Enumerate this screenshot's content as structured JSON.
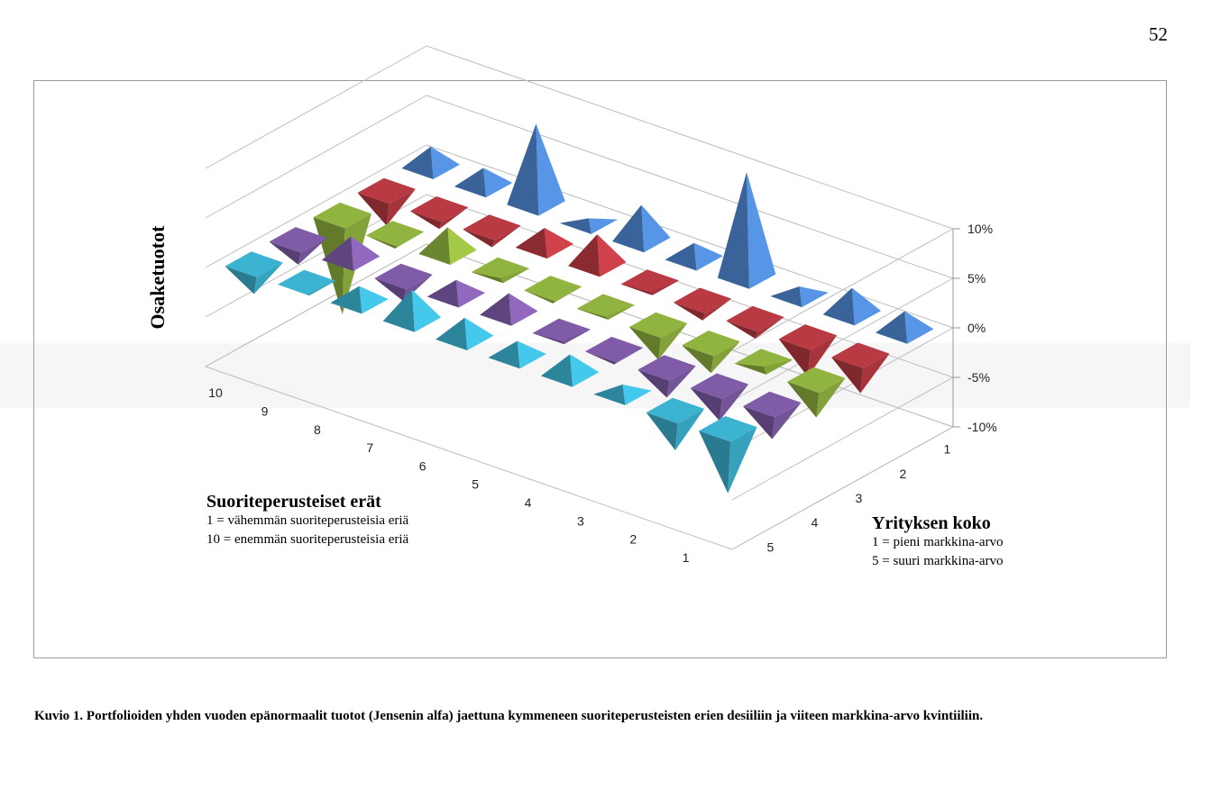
{
  "page_number": "52",
  "figure_caption": "Kuvio 1. Portfolioiden yhden vuoden epänormaalit tuotot (Jensenin alfa) jaettuna kymmeneen suoriteperusteisten erien desiiliin ja viiteen markkina-arvo kvintiiliin.",
  "legend_performance": {
    "title": "Suoriteperusteiset erät",
    "line1": "1 = vähemmän suoriteperusteisia eriä",
    "line2": "10 = enemmän suoriteperusteisia eriä"
  },
  "legend_size": {
    "title": "Yrityksen koko",
    "line1": "1 = pieni markkina-arvo",
    "line2": "5 = suuri markkina-arvo"
  },
  "chart_data": {
    "type": "3d-column",
    "ylabel": "Osaketuotot",
    "z_ticks": [
      "10%",
      "5%",
      "0%",
      "-5%",
      "-10%"
    ],
    "zlim": [
      -10,
      10
    ],
    "x_categories": [
      "1",
      "2",
      "3",
      "4",
      "5",
      "6",
      "7",
      "8",
      "9",
      "10"
    ],
    "series": [
      {
        "name": "1",
        "color": "#4a7fc4",
        "values": [
          2.0,
          2.5,
          0.8,
          10.5,
          1.5,
          3.5,
          0.3,
          8.0,
          1.7,
          2.0
        ]
      },
      {
        "name": "2",
        "color": "#b0373f",
        "values": [
          -3.8,
          -4.0,
          -2.0,
          -2.0,
          -1.0,
          3.0,
          1.8,
          -2.0,
          -2.0,
          -3.5
        ]
      },
      {
        "name": "3",
        "color": "#8aaa3c",
        "values": [
          -3.8,
          -0.5,
          -3.0,
          -3.5,
          -1.0,
          -1.5,
          -0.8,
          2.5,
          -1.5,
          -10.0
        ]
      },
      {
        "name": "4",
        "color": "#7a58a0",
        "values": [
          -3.5,
          -3.5,
          -3.0,
          -1.5,
          -1.0,
          2.0,
          1.5,
          -2.5,
          2.2,
          -2.5
        ]
      },
      {
        "name": "5",
        "color": "#3aaac8",
        "values": [
          -6.5,
          -4.0,
          0.8,
          2.0,
          1.5,
          2.0,
          3.0,
          1.5,
          -1.2,
          -3.0
        ]
      }
    ]
  }
}
